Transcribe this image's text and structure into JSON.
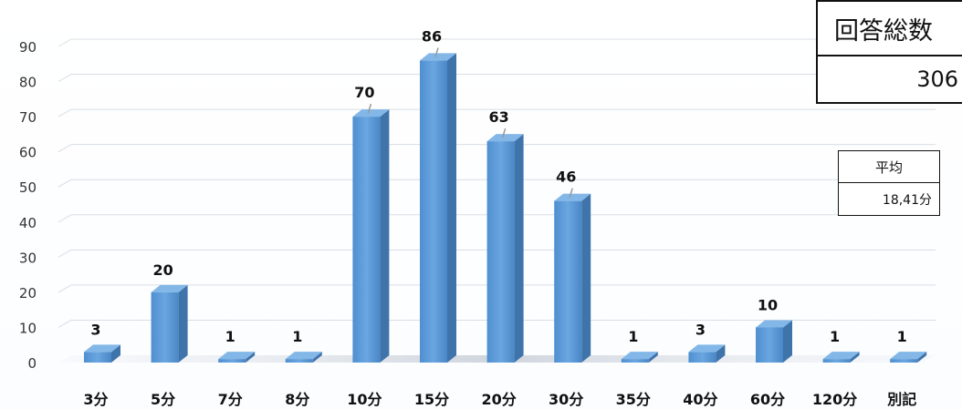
{
  "chart_data": {
    "type": "bar",
    "categories": [
      "3分",
      "5分",
      "7分",
      "8分",
      "10分",
      "15分",
      "20分",
      "30分",
      "35分",
      "40分",
      "60分",
      "120分",
      "別記"
    ],
    "values": [
      3,
      20,
      1,
      1,
      70,
      86,
      63,
      46,
      1,
      3,
      10,
      1,
      1
    ],
    "title": "",
    "xlabel": "",
    "ylabel": "",
    "ylim": [
      0,
      90
    ],
    "yticks": [
      0,
      10,
      20,
      30,
      40,
      50,
      60,
      70,
      80,
      90
    ],
    "grid": true,
    "legend": "none",
    "bar_color": "#5b9bd5"
  },
  "summary": {
    "total_label": "回答総数",
    "total_value": "306",
    "avg_label": "平均",
    "avg_value": "18,41分"
  }
}
